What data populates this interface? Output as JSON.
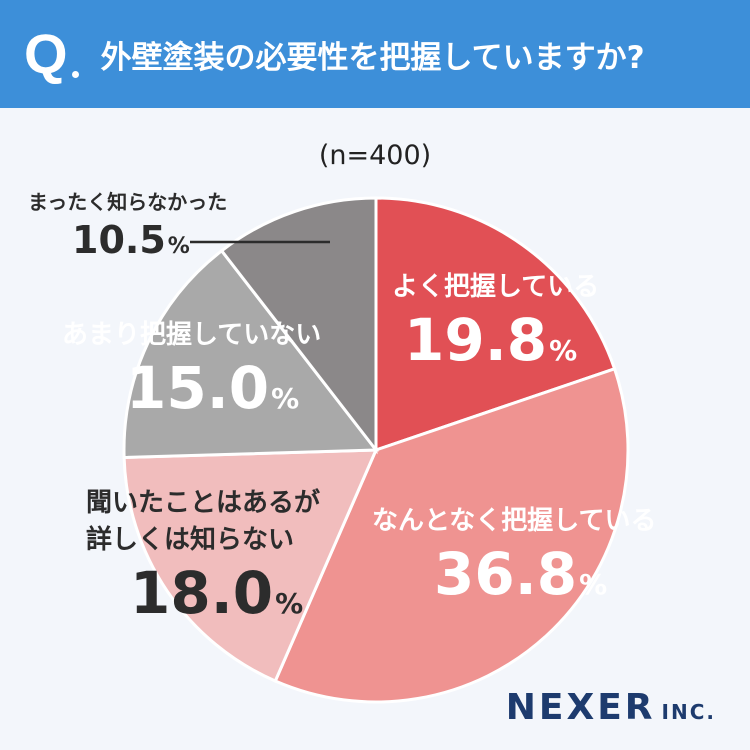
{
  "header": {
    "q_mark": "Q",
    "question": "外壁塗装の必要性を把握していますか?"
  },
  "sample_size": "(n=400)",
  "chart_data": {
    "type": "pie",
    "start": "top, clockwise",
    "slices": [
      {
        "label": "よく把握している",
        "value": 19.8,
        "display": "19.8",
        "color": "#e15055"
      },
      {
        "label": "なんとなく把握している",
        "value": 36.8,
        "display": "36.8",
        "color": "#ef9391"
      },
      {
        "label_lines": [
          "聞いたことはあるが",
          "詳しくは知らない"
        ],
        "value": 18.0,
        "display": "18.0",
        "color": "#f1bdbd"
      },
      {
        "label": "あまり把握していない",
        "value": 15.0,
        "display": "15.0",
        "color": "#a9a9a9"
      },
      {
        "label": "まったく知らなかった",
        "value": 10.5,
        "display": "10.5",
        "color": "#8b8889"
      }
    ],
    "unit": "%"
  },
  "logo": {
    "main": "NEXER",
    "sub": "INC."
  }
}
